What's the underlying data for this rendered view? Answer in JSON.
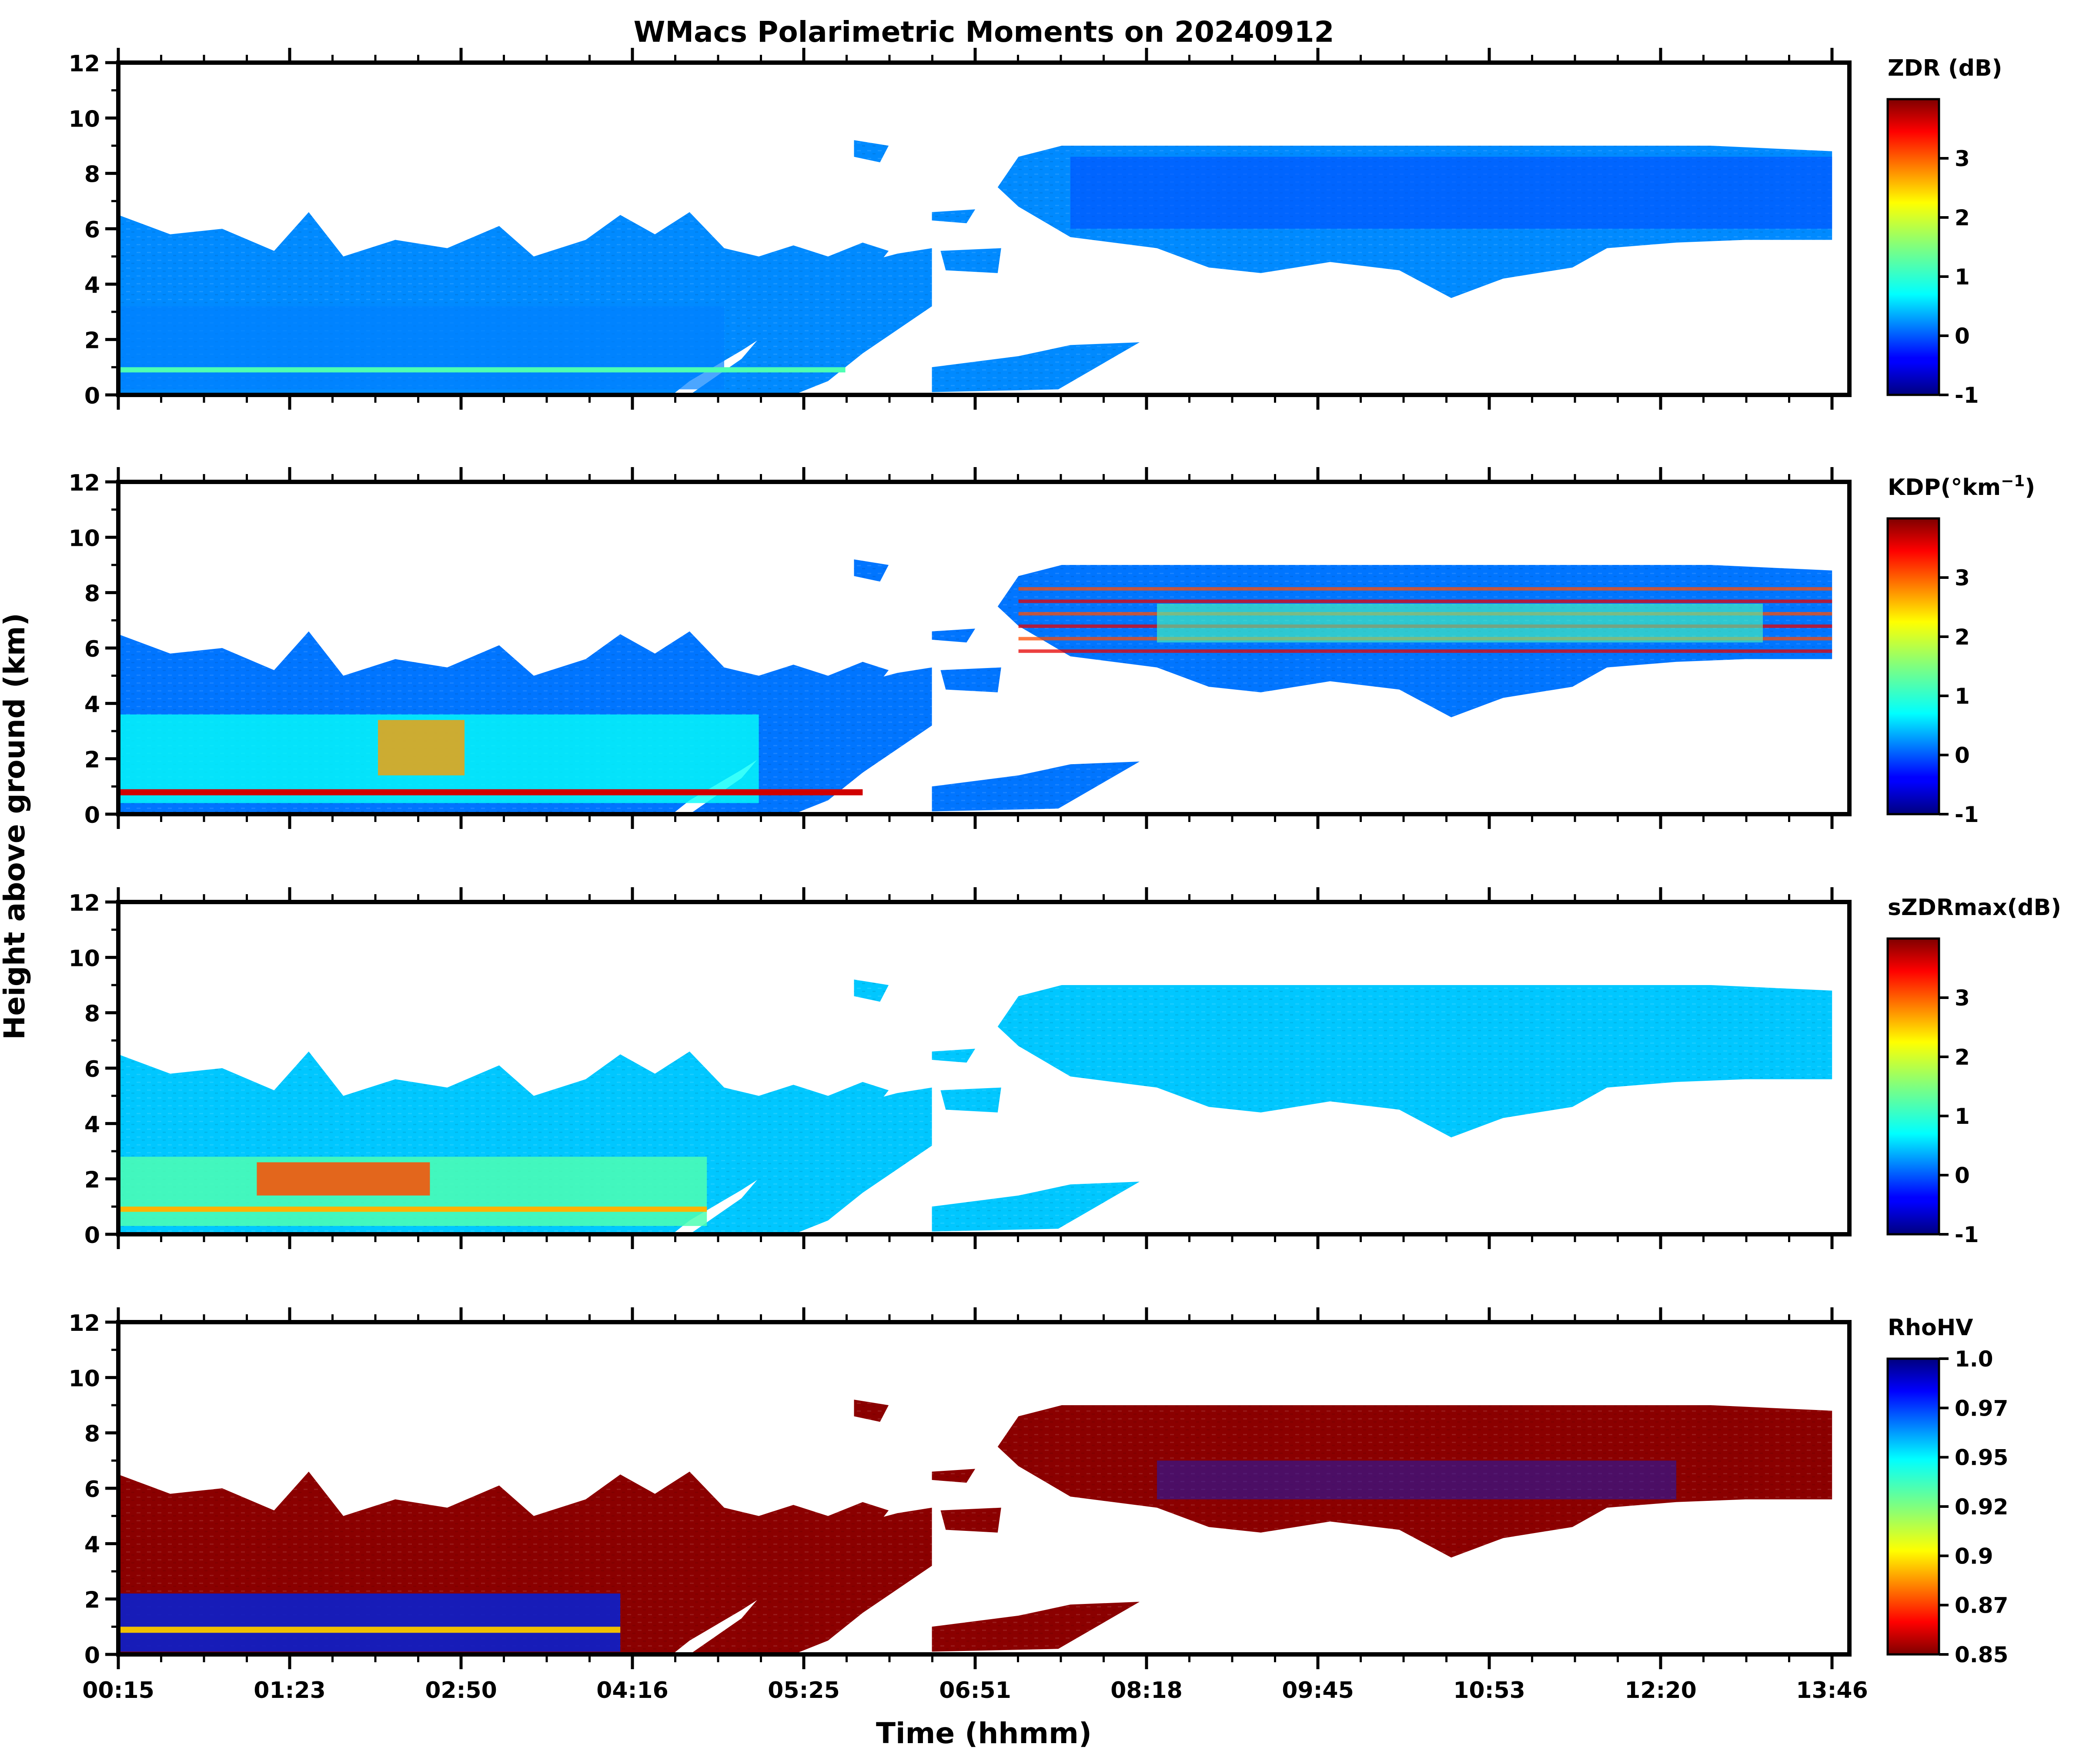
{
  "chart_data": {
    "type": "heatmap",
    "title": "WMacs Polarimetric Moments on 20240912",
    "xlabel": "Time (hhmm)",
    "ylabel": "Height above ground (km)",
    "x_tick_labels": [
      "00:15",
      "01:23",
      "02:50",
      "04:16",
      "05:25",
      "06:51",
      "08:18",
      "09:45",
      "10:53",
      "12:20",
      "13:46"
    ],
    "y_ticks": [
      0,
      2,
      4,
      6,
      8,
      10,
      12
    ],
    "ylim": [
      0,
      12
    ],
    "panels": [
      {
        "variable": "ZDR",
        "colorbar_label": "ZDR (dB)",
        "colorbar_ticks": [
          "-1",
          "0",
          "1",
          "2",
          "3"
        ],
        "range": [
          -1,
          4
        ],
        "dominant_value": 0.3
      },
      {
        "variable": "KDP",
        "colorbar_label": "KDP(°km",
        "colorbar_label_sup": "−1",
        "colorbar_label_tail": ")",
        "colorbar_ticks": [
          "-1",
          "0",
          "1",
          "2",
          "3"
        ],
        "range": [
          -1,
          4
        ],
        "dominant_value": 0.2
      },
      {
        "variable": "sZDRmax",
        "colorbar_label": "sZDRmax(dB)",
        "colorbar_ticks": [
          "-1",
          "0",
          "1",
          "2",
          "3"
        ],
        "range": [
          -1,
          4
        ],
        "dominant_value": 0.6
      },
      {
        "variable": "RhoHV",
        "colorbar_label": "RhoHV",
        "colorbar_ticks": [
          "0.85",
          "0.87",
          "0.9",
          "0.92",
          "0.95",
          "0.97",
          "1.0"
        ],
        "range": [
          0.85,
          1.0
        ],
        "dominant_value": 0.86
      }
    ]
  }
}
